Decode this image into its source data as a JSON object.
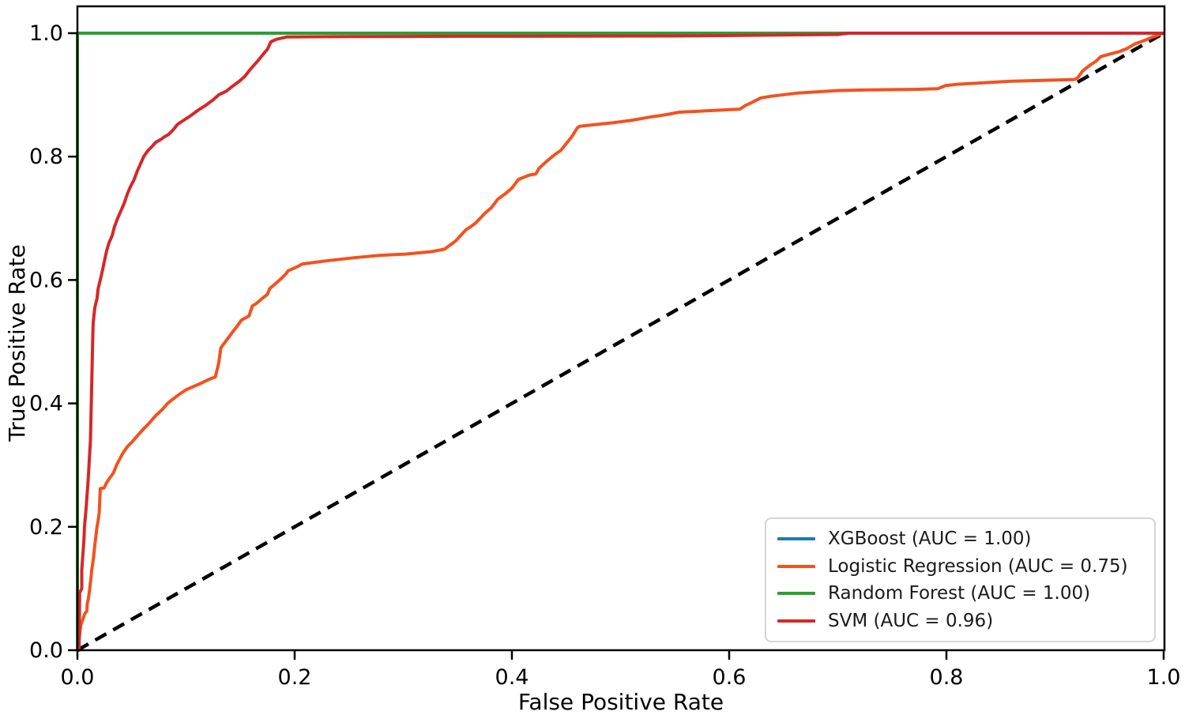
{
  "chart_data": {
    "type": "line",
    "title": "",
    "xlabel": "False Positive Rate",
    "ylabel": "True Positive Rate",
    "xlim": [
      0.0,
      1.0
    ],
    "ylim": [
      0.0,
      1.04
    ],
    "grid": false,
    "legend_position": "lower right",
    "x_ticks": [
      {
        "label": "0.0",
        "value": 0.0
      },
      {
        "label": "0.2",
        "value": 0.2
      },
      {
        "label": "0.4",
        "value": 0.4
      },
      {
        "label": "0.6",
        "value": 0.6
      },
      {
        "label": "0.8",
        "value": 0.8
      },
      {
        "label": "1.0",
        "value": 1.0
      }
    ],
    "y_ticks": [
      {
        "label": "0.0",
        "value": 0.0
      },
      {
        "label": "0.2",
        "value": 0.2
      },
      {
        "label": "0.4",
        "value": 0.4
      },
      {
        "label": "0.6",
        "value": 0.6
      },
      {
        "label": "0.8",
        "value": 0.8
      },
      {
        "label": "1.0",
        "value": 1.0
      }
    ],
    "reference_line": {
      "name": "chance-diagonal",
      "color": "#000000",
      "style": "dashed",
      "points": [
        [
          0,
          0
        ],
        [
          1,
          1
        ]
      ]
    },
    "series": [
      {
        "id": "xgboost",
        "name": "XGBoost (AUC = 1.00)",
        "auc": 1.0,
        "color": "#1f77b4",
        "style": "solid",
        "points": [
          [
            0,
            0
          ],
          [
            0,
            1
          ],
          [
            1,
            1
          ]
        ]
      },
      {
        "id": "logistic-regression",
        "name": "Logistic Regression (AUC = 0.75)",
        "auc": 0.75,
        "color": "#f4511e",
        "style": "solid",
        "points": [
          [
            0,
            0
          ],
          [
            0.001,
            0.01
          ],
          [
            0.002,
            0.025
          ],
          [
            0.003,
            0.04
          ],
          [
            0.005,
            0.05
          ],
          [
            0.0065,
            0.058
          ],
          [
            0.0087,
            0.064
          ],
          [
            0.009,
            0.075
          ],
          [
            0.01,
            0.083
          ],
          [
            0.011,
            0.095
          ],
          [
            0.0124,
            0.115
          ],
          [
            0.013,
            0.128
          ],
          [
            0.014,
            0.14
          ],
          [
            0.015,
            0.153
          ],
          [
            0.016,
            0.17
          ],
          [
            0.017,
            0.185
          ],
          [
            0.018,
            0.2
          ],
          [
            0.019,
            0.209
          ],
          [
            0.02,
            0.222
          ],
          [
            0.0205,
            0.24
          ],
          [
            0.021,
            0.262
          ],
          [
            0.0245,
            0.263
          ],
          [
            0.027,
            0.272
          ],
          [
            0.03,
            0.28
          ],
          [
            0.033,
            0.287
          ],
          [
            0.036,
            0.3
          ],
          [
            0.039,
            0.31
          ],
          [
            0.042,
            0.32
          ],
          [
            0.046,
            0.33
          ],
          [
            0.05,
            0.337
          ],
          [
            0.055,
            0.347
          ],
          [
            0.06,
            0.357
          ],
          [
            0.066,
            0.368
          ],
          [
            0.072,
            0.38
          ],
          [
            0.078,
            0.39
          ],
          [
            0.083,
            0.4
          ],
          [
            0.088,
            0.407
          ],
          [
            0.094,
            0.415
          ],
          [
            0.1,
            0.422
          ],
          [
            0.105,
            0.426
          ],
          [
            0.113,
            0.432
          ],
          [
            0.12,
            0.438
          ],
          [
            0.127,
            0.443
          ],
          [
            0.13,
            0.465
          ],
          [
            0.132,
            0.49
          ],
          [
            0.143,
            0.516
          ],
          [
            0.147,
            0.525
          ],
          [
            0.151,
            0.535
          ],
          [
            0.158,
            0.542
          ],
          [
            0.161,
            0.558
          ],
          [
            0.164,
            0.561
          ],
          [
            0.17,
            0.57
          ],
          [
            0.175,
            0.577
          ],
          [
            0.177,
            0.586
          ],
          [
            0.183,
            0.595
          ],
          [
            0.188,
            0.603
          ],
          [
            0.192,
            0.61
          ],
          [
            0.194,
            0.615
          ],
          [
            0.198,
            0.618
          ],
          [
            0.203,
            0.622
          ],
          [
            0.207,
            0.626
          ],
          [
            0.229,
            0.631
          ],
          [
            0.254,
            0.636
          ],
          [
            0.278,
            0.64
          ],
          [
            0.302,
            0.642
          ],
          [
            0.326,
            0.646
          ],
          [
            0.338,
            0.65
          ],
          [
            0.345,
            0.659
          ],
          [
            0.348,
            0.663
          ],
          [
            0.358,
            0.682
          ],
          [
            0.361,
            0.685
          ],
          [
            0.367,
            0.693
          ],
          [
            0.375,
            0.708
          ],
          [
            0.381,
            0.717
          ],
          [
            0.387,
            0.731
          ],
          [
            0.394,
            0.74
          ],
          [
            0.4,
            0.749
          ],
          [
            0.406,
            0.763
          ],
          [
            0.416,
            0.77
          ],
          [
            0.422,
            0.772
          ],
          [
            0.425,
            0.781
          ],
          [
            0.433,
            0.794
          ],
          [
            0.44,
            0.804
          ],
          [
            0.445,
            0.81
          ],
          [
            0.45,
            0.821
          ],
          [
            0.455,
            0.832
          ],
          [
            0.46,
            0.846
          ],
          [
            0.462,
            0.849
          ],
          [
            0.472,
            0.851
          ],
          [
            0.494,
            0.855
          ],
          [
            0.511,
            0.859
          ],
          [
            0.527,
            0.864
          ],
          [
            0.542,
            0.868
          ],
          [
            0.554,
            0.872
          ],
          [
            0.61,
            0.877
          ],
          [
            0.615,
            0.883
          ],
          [
            0.62,
            0.887
          ],
          [
            0.629,
            0.895
          ],
          [
            0.639,
            0.898
          ],
          [
            0.663,
            0.903
          ],
          [
            0.7,
            0.907
          ],
          [
            0.724,
            0.908
          ],
          [
            0.772,
            0.909
          ],
          [
            0.792,
            0.91
          ],
          [
            0.799,
            0.915
          ],
          [
            0.809,
            0.917
          ],
          [
            0.838,
            0.92
          ],
          [
            0.858,
            0.922
          ],
          [
            0.918,
            0.925
          ],
          [
            0.921,
            0.928
          ],
          [
            0.925,
            0.938
          ],
          [
            0.929,
            0.944
          ],
          [
            0.933,
            0.949
          ],
          [
            0.938,
            0.955
          ],
          [
            0.942,
            0.962
          ],
          [
            0.95,
            0.966
          ],
          [
            0.959,
            0.97
          ],
          [
            0.966,
            0.975
          ],
          [
            0.974,
            0.983
          ],
          [
            0.982,
            0.988
          ],
          [
            0.99,
            0.994
          ],
          [
            1,
            1
          ]
        ]
      },
      {
        "id": "random-forest",
        "name": "Random Forest (AUC = 1.00)",
        "auc": 1.0,
        "color": "#2ca02c",
        "style": "solid",
        "points": [
          [
            0,
            0
          ],
          [
            0,
            1
          ],
          [
            1,
            1
          ]
        ]
      },
      {
        "id": "svm",
        "name": "SVM (AUC = 0.96)",
        "auc": 0.96,
        "color": "#d62728",
        "style": "solid",
        "points": [
          [
            0,
            0
          ],
          [
            0.0015,
            0
          ],
          [
            0.002,
            0.093
          ],
          [
            0.004,
            0.1
          ],
          [
            0.004,
            0.13
          ],
          [
            0.005,
            0.155
          ],
          [
            0.006,
            0.18
          ],
          [
            0.0065,
            0.2
          ],
          [
            0.008,
            0.23
          ],
          [
            0.009,
            0.255
          ],
          [
            0.01,
            0.28
          ],
          [
            0.011,
            0.31
          ],
          [
            0.012,
            0.34
          ],
          [
            0.0125,
            0.38
          ],
          [
            0.013,
            0.42
          ],
          [
            0.0135,
            0.46
          ],
          [
            0.014,
            0.5
          ],
          [
            0.0145,
            0.53
          ],
          [
            0.016,
            0.555
          ],
          [
            0.018,
            0.57
          ],
          [
            0.019,
            0.585
          ],
          [
            0.021,
            0.6
          ],
          [
            0.023,
            0.615
          ],
          [
            0.025,
            0.632
          ],
          [
            0.027,
            0.648
          ],
          [
            0.029,
            0.66
          ],
          [
            0.032,
            0.672
          ],
          [
            0.034,
            0.686
          ],
          [
            0.037,
            0.7
          ],
          [
            0.04,
            0.712
          ],
          [
            0.043,
            0.724
          ],
          [
            0.046,
            0.74
          ],
          [
            0.049,
            0.752
          ],
          [
            0.052,
            0.762
          ],
          [
            0.055,
            0.776
          ],
          [
            0.058,
            0.788
          ],
          [
            0.061,
            0.8
          ],
          [
            0.065,
            0.81
          ],
          [
            0.069,
            0.817
          ],
          [
            0.072,
            0.823
          ],
          [
            0.077,
            0.828
          ],
          [
            0.08,
            0.832
          ],
          [
            0.084,
            0.836
          ],
          [
            0.088,
            0.843
          ],
          [
            0.092,
            0.852
          ],
          [
            0.097,
            0.858
          ],
          [
            0.104,
            0.866
          ],
          [
            0.111,
            0.875
          ],
          [
            0.118,
            0.883
          ],
          [
            0.125,
            0.892
          ],
          [
            0.13,
            0.9
          ],
          [
            0.137,
            0.906
          ],
          [
            0.142,
            0.913
          ],
          [
            0.149,
            0.922
          ],
          [
            0.154,
            0.93
          ],
          [
            0.159,
            0.941
          ],
          [
            0.166,
            0.955
          ],
          [
            0.172,
            0.968
          ],
          [
            0.175,
            0.974
          ],
          [
            0.178,
            0.986
          ],
          [
            0.183,
            0.99
          ],
          [
            0.193,
            0.994
          ],
          [
            0.25,
            0.9945
          ],
          [
            0.35,
            0.995
          ],
          [
            0.45,
            0.9952
          ],
          [
            0.55,
            0.9955
          ],
          [
            0.65,
            0.997
          ],
          [
            0.7,
            0.998
          ],
          [
            0.71,
            1
          ],
          [
            1,
            1
          ]
        ]
      }
    ]
  }
}
